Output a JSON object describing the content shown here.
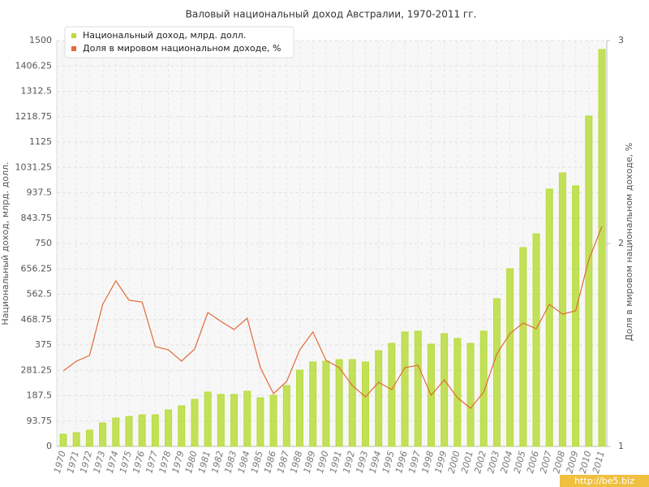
{
  "chart_data": {
    "type": "bar-line",
    "title": "Валовый национальный доход Австралии, 1970-2011 гг.",
    "y_label": "Национальный доход, млрд. долл.",
    "y2_label": "Доля в мировом национальном доходе, %",
    "watermark": "http://be5.biz",
    "categories": [
      "1970",
      "1971",
      "1972",
      "1973",
      "1974",
      "1975",
      "1976",
      "1977",
      "1978",
      "1979",
      "1980",
      "1981",
      "1982",
      "1983",
      "1984",
      "1985",
      "1986",
      "1987",
      "1988",
      "1989",
      "1990",
      "1991",
      "1992",
      "1993",
      "1994",
      "1995",
      "1996",
      "1997",
      "1998",
      "1999",
      "2000",
      "2001",
      "2002",
      "2003",
      "2004",
      "2005",
      "2006",
      "2007",
      "2008",
      "2009",
      "2010",
      "2011"
    ],
    "series": [
      {
        "name": "Национальный доход, млрд. долл.",
        "type": "bar",
        "color": "#b9dc3c",
        "values": [
          45,
          51,
          60,
          87,
          105,
          111,
          117,
          117,
          135,
          150,
          174,
          201,
          192,
          192,
          204,
          180,
          189,
          225,
          282,
          312,
          315,
          321,
          321,
          312,
          354,
          381,
          423,
          426,
          378,
          417,
          399,
          381,
          426,
          546,
          657,
          735,
          786,
          951,
          1011,
          963,
          1221,
          1467
        ]
      },
      {
        "name": "Доля в мировом национальном доходе, %",
        "type": "line",
        "axis": "y2",
        "color": "#e2693a",
        "values": [
          1.372,
          1.42,
          1.448,
          1.7,
          1.816,
          1.72,
          1.712,
          1.492,
          1.476,
          1.42,
          1.48,
          1.66,
          1.616,
          1.576,
          1.632,
          1.388,
          1.26,
          1.32,
          1.476,
          1.564,
          1.424,
          1.388,
          1.3,
          1.244,
          1.316,
          1.28,
          1.388,
          1.4,
          1.252,
          1.328,
          1.24,
          1.188,
          1.268,
          1.456,
          1.556,
          1.608,
          1.58,
          1.7,
          1.652,
          1.668,
          1.92,
          2.084
        ]
      }
    ],
    "ylim": [
      0,
      1500
    ],
    "yticks": [
      0,
      93.75,
      187.5,
      281.25,
      375,
      468.75,
      562.5,
      656.25,
      750,
      843.75,
      937.5,
      1031.25,
      1125,
      1218.75,
      1312.5,
      1406.25,
      1500
    ],
    "y2lim": [
      1,
      3
    ],
    "y2ticks": [
      1,
      2,
      3
    ],
    "grid": true,
    "legend": "top-left"
  }
}
